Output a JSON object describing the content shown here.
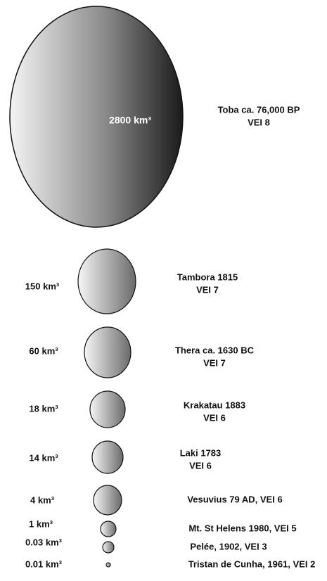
{
  "items": [
    {
      "volume": "2800 km³",
      "lines": [
        "Toba ca. 76,000 BP",
        "VEI 8"
      ]
    },
    {
      "volume": "150 km³",
      "lines": [
        "Tambora 1815",
        "VEI 7"
      ]
    },
    {
      "volume": "60 km³",
      "lines": [
        "Thera ca. 1630 BC",
        "VEI 7"
      ]
    },
    {
      "volume": "18 km³",
      "lines": [
        "Krakatau 1883",
        "VEI 6"
      ]
    },
    {
      "volume": "14 km³",
      "lines": [
        "Laki 1783",
        "VEI 6"
      ]
    },
    {
      "volume": "4 km³",
      "lines": [
        "Vesuvius 79 AD, VEI 6"
      ]
    },
    {
      "volume": "1 km³",
      "lines": [
        "Mt. St Helens 1980, VEI 5"
      ]
    },
    {
      "volume": "0.03 km³",
      "lines": [
        "Pelée, 1902, VEI 3"
      ]
    },
    {
      "volume": "0.01 km³",
      "lines": [
        "Tristan de Cunha, 1961, VEI 2"
      ]
    }
  ]
}
